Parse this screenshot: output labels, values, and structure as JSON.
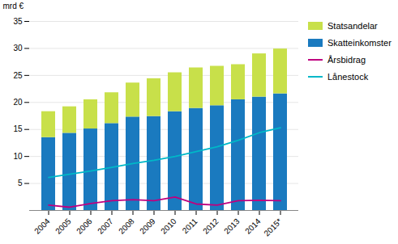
{
  "chart_data": {
    "type": "bar",
    "stacked": true,
    "categories": [
      "2004",
      "2005",
      "2006",
      "2007",
      "2008",
      "2009",
      "2010",
      "2011",
      "2012",
      "2013",
      "2014",
      "2015*"
    ],
    "series": [
      {
        "name": "Skatteinkomster",
        "type": "bar",
        "color": "#1a7abf",
        "values": [
          13.5,
          14.3,
          15.1,
          16.1,
          17.3,
          17.4,
          18.3,
          18.9,
          19.4,
          20.5,
          21.0,
          21.6
        ]
      },
      {
        "name": "Statsandelar",
        "type": "bar",
        "color": "#c8e04a",
        "values": [
          4.8,
          4.9,
          5.4,
          5.7,
          6.3,
          7.0,
          7.2,
          7.5,
          7.3,
          6.5,
          8.0,
          8.3
        ]
      },
      {
        "name": "Årsbidrag",
        "type": "line",
        "color": "#bf007f",
        "values": [
          1.0,
          0.6,
          1.3,
          1.8,
          2.0,
          1.8,
          2.5,
          1.2,
          1.0,
          1.8,
          1.9,
          1.8
        ]
      },
      {
        "name": "Lånestock",
        "type": "line",
        "color": "#00b8c8",
        "values": [
          6.1,
          6.7,
          7.3,
          8.0,
          8.7,
          9.3,
          10.0,
          10.9,
          11.8,
          13.0,
          14.4,
          15.3
        ]
      }
    ],
    "ylabel": "mrd €",
    "ylim": [
      0,
      35
    ],
    "yticks": [
      5,
      10,
      15,
      20,
      25,
      30,
      35
    ],
    "grid": true,
    "legend": "right"
  }
}
